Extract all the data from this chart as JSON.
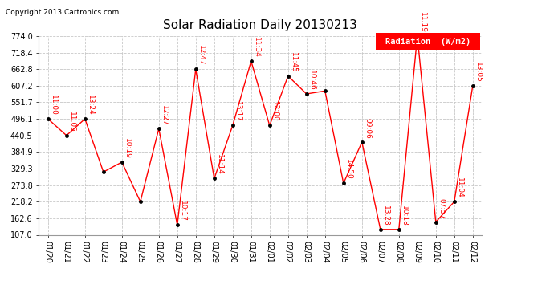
{
  "title": "Solar Radiation Daily 20130213",
  "copyright": "Copyright 2013 Cartronics.com",
  "legend_label": "Radiation  (W/m2)",
  "x_labels": [
    "01/20",
    "01/21",
    "01/22",
    "01/23",
    "01/24",
    "01/25",
    "01/26",
    "01/27",
    "01/28",
    "01/29",
    "01/30",
    "01/31",
    "02/01",
    "02/02",
    "02/03",
    "02/04",
    "02/05",
    "02/06",
    "02/07",
    "02/08",
    "02/09",
    "02/10",
    "02/11",
    "02/12"
  ],
  "y_values": [
    496.1,
    440.5,
    496.1,
    318.0,
    351.0,
    218.2,
    463.0,
    140.0,
    662.8,
    296.0,
    474.0,
    690.0,
    474.0,
    640.0,
    580.0,
    590.0,
    280.0,
    418.0,
    125.0,
    125.0,
    774.0,
    150.0,
    218.2,
    607.2
  ],
  "point_labels": [
    "11:00",
    "11:05",
    "13:24",
    "",
    "10:19",
    "",
    "12:27",
    "10:17",
    "12:47",
    "11:14",
    "13:17",
    "11:34",
    "12:00",
    "11:45",
    "10:46",
    "",
    "14:50",
    "09:06",
    "13:28",
    "10:18",
    "11:19",
    "07:57",
    "11:04",
    "13:05"
  ],
  "ylim_min": 107.0,
  "ylim_max": 774.0,
  "y_ticks": [
    107.0,
    162.6,
    218.2,
    273.8,
    329.3,
    384.9,
    440.5,
    496.1,
    551.7,
    607.2,
    662.8,
    718.4,
    774.0
  ],
  "line_color": "red",
  "marker_color": "black",
  "bg_color": "white",
  "grid_color": "#c8c8c8",
  "title_fontsize": 11,
  "label_fontsize": 7,
  "annotation_fontsize": 6.5,
  "copyright_fontsize": 6.5,
  "legend_fontsize": 7.5
}
